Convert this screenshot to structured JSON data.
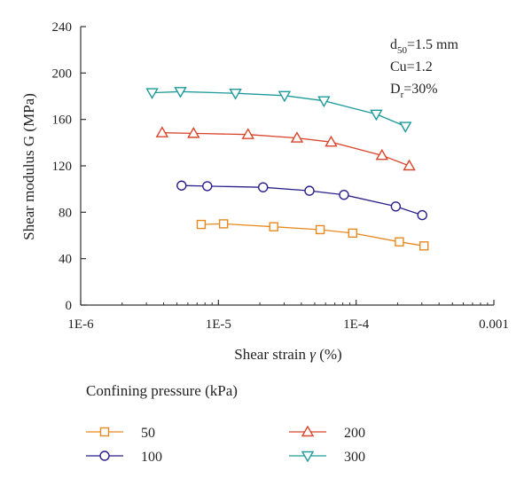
{
  "chart_data": {
    "type": "line",
    "xscale": "log",
    "xlim": [
      1e-06,
      0.001
    ],
    "ylim": [
      0,
      240
    ],
    "xticks": [
      {
        "value": 1e-06,
        "label": "1E-6"
      },
      {
        "value": 1e-05,
        "label": "1E-5"
      },
      {
        "value": 0.0001,
        "label": "1E-4"
      },
      {
        "value": 0.001,
        "label": "0.001"
      }
    ],
    "yticks": [
      {
        "value": 0,
        "label": "0"
      },
      {
        "value": 40,
        "label": "40"
      },
      {
        "value": 80,
        "label": "80"
      },
      {
        "value": 120,
        "label": "120"
      },
      {
        "value": 160,
        "label": "160"
      },
      {
        "value": 200,
        "label": "200"
      },
      {
        "value": 240,
        "label": "240"
      }
    ],
    "xlabel": "Shear strain γ (%)",
    "xlabel_parts": {
      "before": "Shear strain ",
      "symbol": "γ",
      "after": " (%)"
    },
    "ylabel": "Shear modulus G (MPa)",
    "grid": false,
    "annotations": {
      "d50": {
        "base": "d",
        "sub": "50",
        "rest": "=1.5 mm"
      },
      "cu": {
        "text": "Cu=1.2"
      },
      "dr": {
        "base": "D",
        "sub": "r",
        "rest": "=30%"
      }
    },
    "legend": {
      "title": "Confining pressure (kPa)",
      "placement": "bottom"
    },
    "series": [
      {
        "name": "50",
        "color": "#e8891f",
        "marker": "square",
        "x": [
          7.5e-06,
          1.09e-05,
          2.52e-05,
          5.48e-05,
          9.44e-05,
          0.000206,
          0.000311
        ],
        "y": [
          69.5,
          70,
          67.5,
          65,
          62,
          54.5,
          51
        ]
      },
      {
        "name": "100",
        "color": "#2b1f8a",
        "marker": "circle",
        "x": [
          5.4e-06,
          8.3e-06,
          2.11e-05,
          4.58e-05,
          8.16e-05,
          0.000194,
          0.000302
        ],
        "y": [
          103,
          102.5,
          101.5,
          98.5,
          95,
          85,
          77.5
        ]
      },
      {
        "name": "200",
        "color": "#d9452b",
        "marker": "triangle-up",
        "x": [
          3.9e-06,
          6.6e-06,
          1.64e-05,
          3.72e-05,
          6.58e-05,
          0.000154,
          0.000243
        ],
        "y": [
          148.5,
          148,
          147,
          144,
          140.5,
          129,
          120
        ]
      },
      {
        "name": "300",
        "color": "#1f9a9a",
        "marker": "triangle-down",
        "x": [
          3.3e-06,
          5.3e-06,
          1.33e-05,
          3.02e-05,
          5.84e-05,
          0.00014,
          0.000228
        ],
        "y": [
          183,
          184,
          182.5,
          180.5,
          176,
          164.5,
          154
        ]
      }
    ]
  }
}
